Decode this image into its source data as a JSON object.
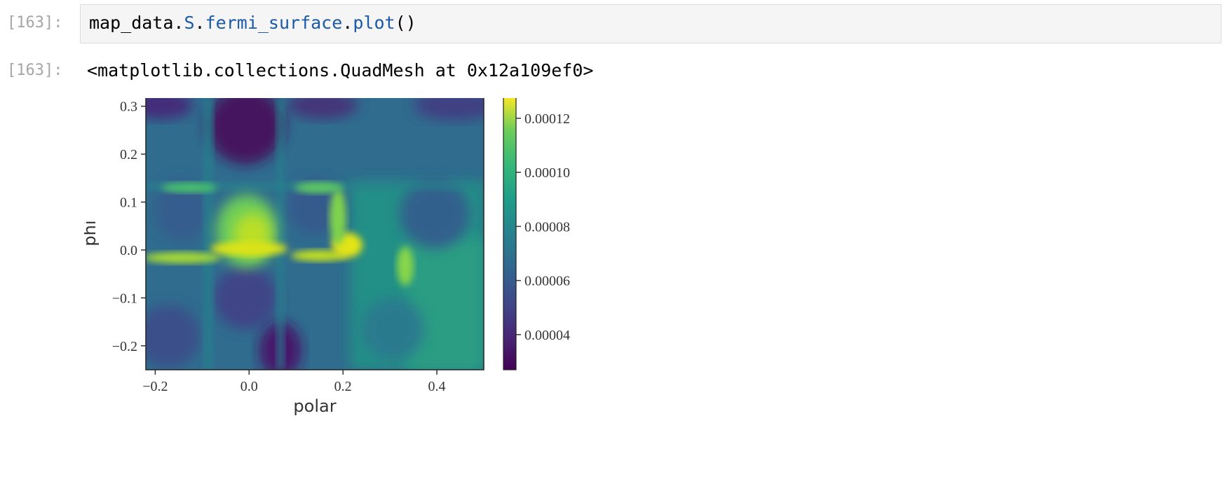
{
  "cells": [
    {
      "prompt_in": "[163]:",
      "code": {
        "obj": "map_data",
        "dot1": ".",
        "attr1": "S",
        "dot2": ".",
        "attr2": "fermi_surface",
        "dot3": ".",
        "method": "plot",
        "parens": "()"
      },
      "prompt_out": "[163]:",
      "output_text": "<matplotlib.collections.QuadMesh at 0x12a109ef0>"
    }
  ],
  "chart_data": {
    "type": "heatmap",
    "xlabel": "polar",
    "ylabel": "phi",
    "xlim": [
      -0.22,
      0.5
    ],
    "ylim": [
      -0.25,
      0.32
    ],
    "xticks": [
      -0.2,
      0.0,
      0.2,
      0.4
    ],
    "xtick_labels": [
      "−0.2",
      "0.0",
      "0.2",
      "0.4"
    ],
    "yticks": [
      -0.2,
      -0.1,
      0.0,
      0.1,
      0.2,
      0.3
    ],
    "ytick_labels": [
      "−0.2",
      "−0.1",
      "0.0",
      "0.1",
      "0.2",
      "0.3"
    ],
    "colorbar": {
      "min": 2.7e-05,
      "max": 0.000128,
      "ticks": [
        4e-05,
        6e-05,
        8e-05,
        0.0001,
        0.00012
      ],
      "tick_labels": [
        "0.00004",
        "0.00006",
        "0.00008",
        "0.00010",
        "0.00012"
      ],
      "colormap": "viridis"
    },
    "colors": {
      "low": "#440154",
      "mid": "#21918c",
      "high": "#fde725"
    }
  }
}
